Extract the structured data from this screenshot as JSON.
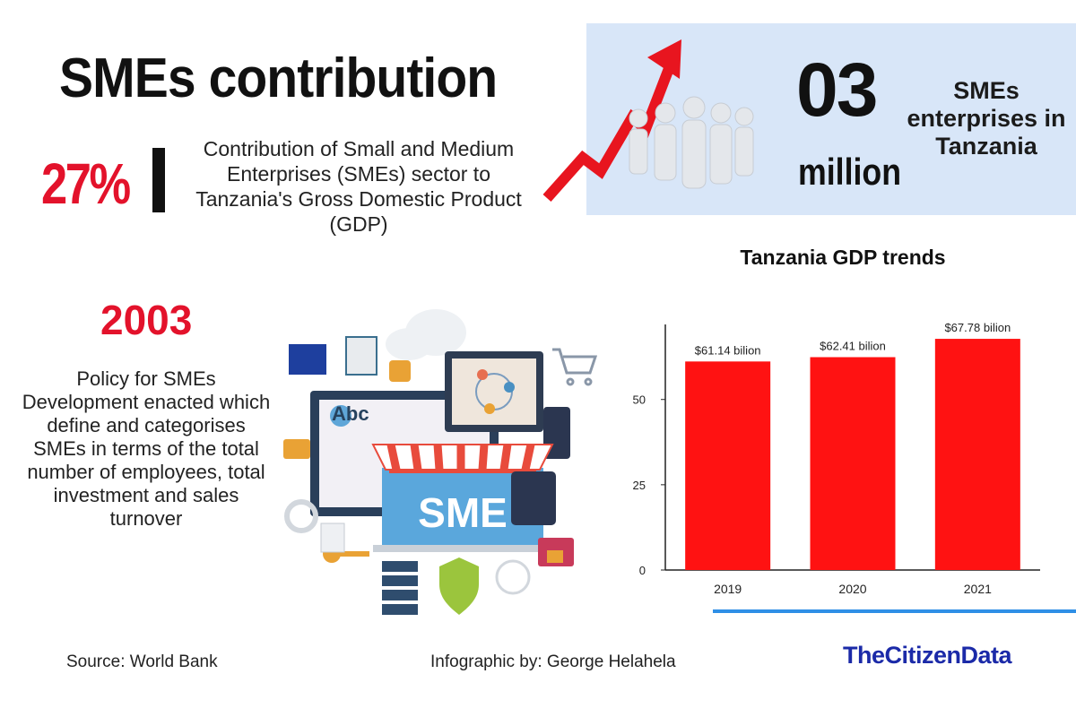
{
  "header": {
    "title": "SMEs contribution"
  },
  "stat": {
    "value": "27%",
    "description": "Contribution of Small and Medium Enterprises (SMEs) sector to Tanzania's Gross Domestic Product (GDP)"
  },
  "hero": {
    "number": "03",
    "unit": "million",
    "label": "SMEs enterprises in Tanzania"
  },
  "policy": {
    "year": "2003",
    "text": "Policy for SMEs Development enacted which define and categorises SMEs in terms of the total number of employees, total investment and sales turnover"
  },
  "illustration": {
    "sign_text": "SME",
    "search_text": "Abc"
  },
  "chart_data": {
    "type": "bar",
    "title": "Tanzania GDP trends",
    "categories": [
      "2019",
      "2020",
      "2021"
    ],
    "values": [
      61.14,
      62.41,
      67.78
    ],
    "data_labels": [
      "$61.14 bilion",
      "$62.41 bilion",
      "$67.78 bilion"
    ],
    "yticks": [
      0,
      25,
      50
    ],
    "ylim": [
      0,
      72
    ],
    "xlabel": "",
    "ylabel": "",
    "bar_color": "#ff1212",
    "grid": false,
    "legend": "none"
  },
  "footer": {
    "source": "Source: World Bank",
    "credit": "Infographic by: George Helahela",
    "brand": "TheCitizenData"
  },
  "colors": {
    "accent_red": "#e3122b",
    "hero_bg": "#d8e6f8",
    "brand_blue": "#1b2aa8",
    "rule_blue": "#2f8fe6"
  }
}
